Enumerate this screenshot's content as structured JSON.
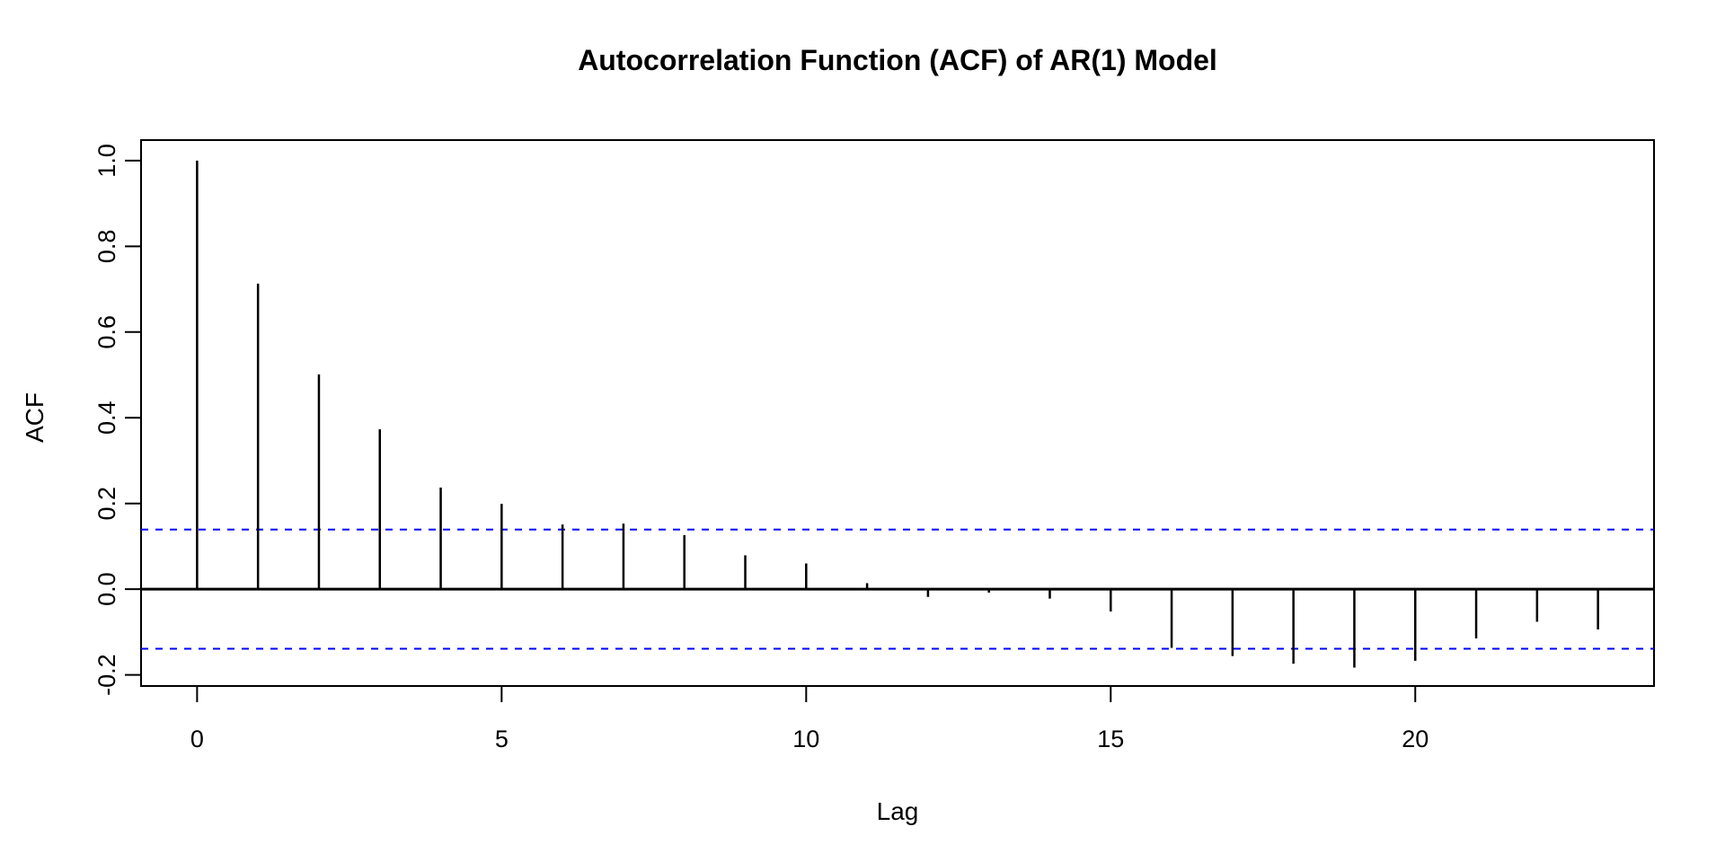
{
  "chart_data": {
    "type": "bar",
    "subtype": "stem-acf",
    "title": "Autocorrelation Function (ACF) of AR(1) Model",
    "xlabel": "Lag",
    "ylabel": "ACF",
    "x": [
      0,
      1,
      2,
      3,
      4,
      5,
      6,
      7,
      8,
      9,
      10,
      11,
      12,
      13,
      14,
      15,
      16,
      17,
      18,
      19,
      20,
      21,
      22,
      23
    ],
    "values": [
      1.0,
      0.713,
      0.501,
      0.373,
      0.237,
      0.199,
      0.151,
      0.153,
      0.126,
      0.079,
      0.06,
      0.014,
      -0.018,
      -0.008,
      -0.022,
      -0.052,
      -0.137,
      -0.156,
      -0.174,
      -0.183,
      -0.167,
      -0.115,
      -0.076,
      -0.094
    ],
    "confidence_interval": 0.139,
    "xlim": [
      -0.92,
      23.92
    ],
    "ylim": [
      -0.226,
      1.048
    ],
    "x_ticks": [
      0,
      5,
      10,
      15,
      20
    ],
    "x_tick_labels": [
      "0",
      "5",
      "10",
      "15",
      "20"
    ],
    "y_ticks": [
      1.0,
      0.8,
      0.6,
      0.4,
      0.2,
      0.0,
      -0.2
    ],
    "y_tick_labels": [
      "1.0",
      "0.8",
      "0.6",
      "0.4",
      "0.2",
      "0.0",
      "-0.2"
    ],
    "grid": "off",
    "legend": "none",
    "colors": {
      "spike": "#000000",
      "zero_line": "#000000",
      "ci_line": "#0000ff",
      "box": "#000000",
      "background": "#ffffff"
    }
  }
}
